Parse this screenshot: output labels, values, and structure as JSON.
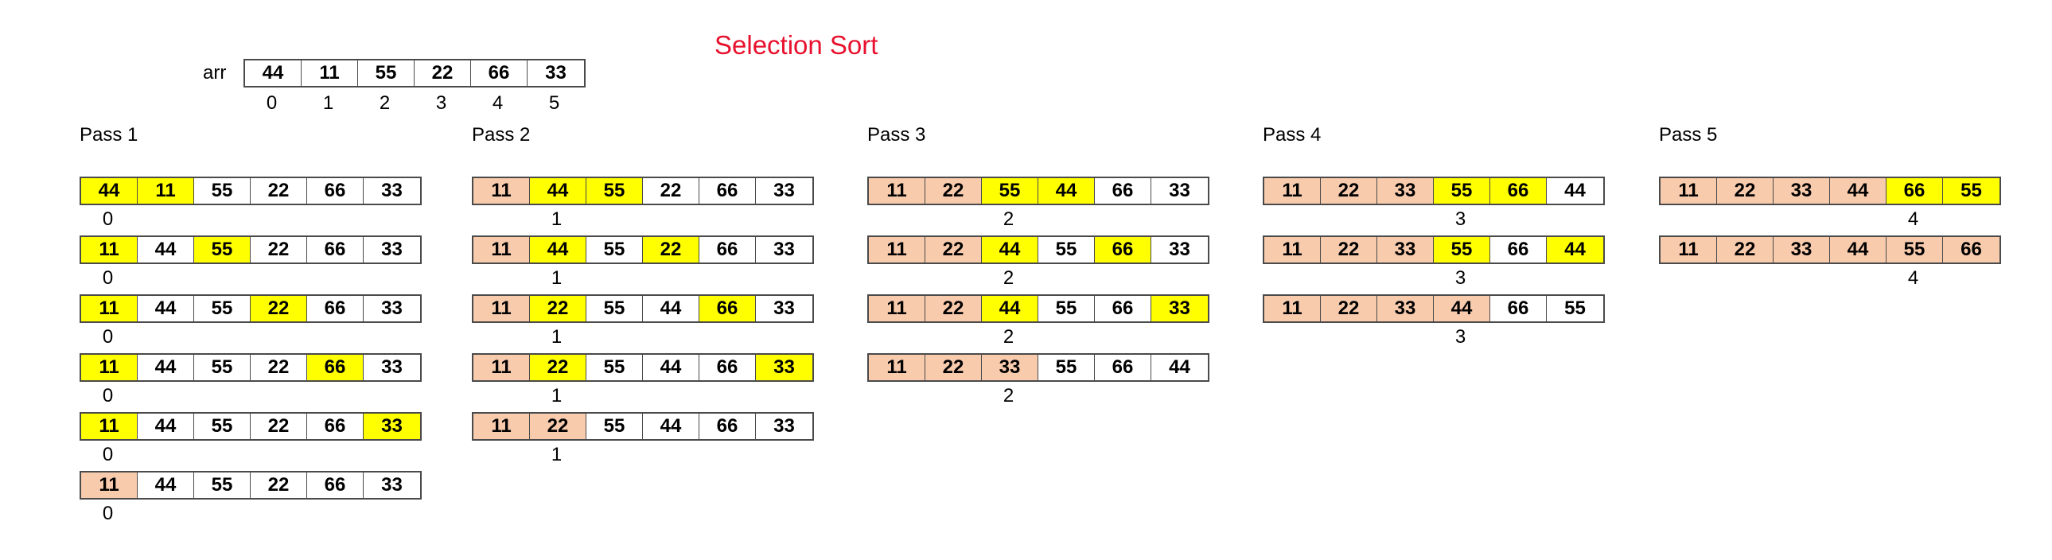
{
  "title": "Selection Sort",
  "arr": {
    "label": "arr",
    "values": [
      "44",
      "11",
      "55",
      "22",
      "66",
      "33"
    ],
    "indices": [
      "0",
      "1",
      "2",
      "3",
      "4",
      "5"
    ]
  },
  "colors": {
    "compare": "#ffff00",
    "sorted": "#f8cbad",
    "title": "#e8112d"
  },
  "passes": [
    {
      "title": "Pass 1",
      "steps": [
        {
          "cells": [
            "44",
            "11",
            "55",
            "22",
            "66",
            "33"
          ],
          "states": [
            "y",
            "y",
            "n",
            "n",
            "n",
            "n"
          ],
          "index": "0",
          "index_pos": 0
        },
        {
          "cells": [
            "11",
            "44",
            "55",
            "22",
            "66",
            "33"
          ],
          "states": [
            "y",
            "n",
            "y",
            "n",
            "n",
            "n"
          ],
          "index": "0",
          "index_pos": 0
        },
        {
          "cells": [
            "11",
            "44",
            "55",
            "22",
            "66",
            "33"
          ],
          "states": [
            "y",
            "n",
            "n",
            "y",
            "n",
            "n"
          ],
          "index": "0",
          "index_pos": 0
        },
        {
          "cells": [
            "11",
            "44",
            "55",
            "22",
            "66",
            "33"
          ],
          "states": [
            "y",
            "n",
            "n",
            "n",
            "y",
            "n"
          ],
          "index": "0",
          "index_pos": 0
        },
        {
          "cells": [
            "11",
            "44",
            "55",
            "22",
            "66",
            "33"
          ],
          "states": [
            "y",
            "n",
            "n",
            "n",
            "n",
            "y"
          ],
          "index": "0",
          "index_pos": 0
        },
        {
          "cells": [
            "11",
            "44",
            "55",
            "22",
            "66",
            "33"
          ],
          "states": [
            "s",
            "n",
            "n",
            "n",
            "n",
            "n"
          ],
          "index": "0",
          "index_pos": 0
        }
      ]
    },
    {
      "title": "Pass 2",
      "steps": [
        {
          "cells": [
            "11",
            "44",
            "55",
            "22",
            "66",
            "33"
          ],
          "states": [
            "s",
            "y",
            "y",
            "n",
            "n",
            "n"
          ],
          "index": "1",
          "index_pos": 1
        },
        {
          "cells": [
            "11",
            "44",
            "55",
            "22",
            "66",
            "33"
          ],
          "states": [
            "s",
            "y",
            "n",
            "y",
            "n",
            "n"
          ],
          "index": "1",
          "index_pos": 1
        },
        {
          "cells": [
            "11",
            "22",
            "55",
            "44",
            "66",
            "33"
          ],
          "states": [
            "s",
            "y",
            "n",
            "n",
            "y",
            "n"
          ],
          "index": "1",
          "index_pos": 1
        },
        {
          "cells": [
            "11",
            "22",
            "55",
            "44",
            "66",
            "33"
          ],
          "states": [
            "s",
            "y",
            "n",
            "n",
            "n",
            "y"
          ],
          "index": "1",
          "index_pos": 1
        },
        {
          "cells": [
            "11",
            "22",
            "55",
            "44",
            "66",
            "33"
          ],
          "states": [
            "s",
            "s",
            "n",
            "n",
            "n",
            "n"
          ],
          "index": "1",
          "index_pos": 1
        }
      ]
    },
    {
      "title": "Pass 3",
      "steps": [
        {
          "cells": [
            "11",
            "22",
            "55",
            "44",
            "66",
            "33"
          ],
          "states": [
            "s",
            "s",
            "y",
            "y",
            "n",
            "n"
          ],
          "index": "2",
          "index_pos": 2
        },
        {
          "cells": [
            "11",
            "22",
            "44",
            "55",
            "66",
            "33"
          ],
          "states": [
            "s",
            "s",
            "y",
            "n",
            "y",
            "n"
          ],
          "index": "2",
          "index_pos": 2
        },
        {
          "cells": [
            "11",
            "22",
            "44",
            "55",
            "66",
            "33"
          ],
          "states": [
            "s",
            "s",
            "y",
            "n",
            "n",
            "y"
          ],
          "index": "2",
          "index_pos": 2
        },
        {
          "cells": [
            "11",
            "22",
            "33",
            "55",
            "66",
            "44"
          ],
          "states": [
            "s",
            "s",
            "s",
            "n",
            "n",
            "n"
          ],
          "index": "2",
          "index_pos": 2
        }
      ]
    },
    {
      "title": "Pass 4",
      "steps": [
        {
          "cells": [
            "11",
            "22",
            "33",
            "55",
            "66",
            "44"
          ],
          "states": [
            "s",
            "s",
            "s",
            "y",
            "y",
            "n"
          ],
          "index": "3",
          "index_pos": 3
        },
        {
          "cells": [
            "11",
            "22",
            "33",
            "55",
            "66",
            "44"
          ],
          "states": [
            "s",
            "s",
            "s",
            "y",
            "n",
            "y"
          ],
          "index": "3",
          "index_pos": 3
        },
        {
          "cells": [
            "11",
            "22",
            "33",
            "44",
            "66",
            "55"
          ],
          "states": [
            "s",
            "s",
            "s",
            "s",
            "n",
            "n"
          ],
          "index": "3",
          "index_pos": 3
        }
      ]
    },
    {
      "title": "Pass 5",
      "steps": [
        {
          "cells": [
            "11",
            "22",
            "33",
            "44",
            "66",
            "55"
          ],
          "states": [
            "s",
            "s",
            "s",
            "s",
            "y",
            "y"
          ],
          "index": "4",
          "index_pos": 4
        },
        {
          "cells": [
            "11",
            "22",
            "33",
            "44",
            "55",
            "66"
          ],
          "states": [
            "s",
            "s",
            "s",
            "s",
            "s",
            "s"
          ],
          "index": "4",
          "index_pos": 4
        }
      ]
    }
  ]
}
